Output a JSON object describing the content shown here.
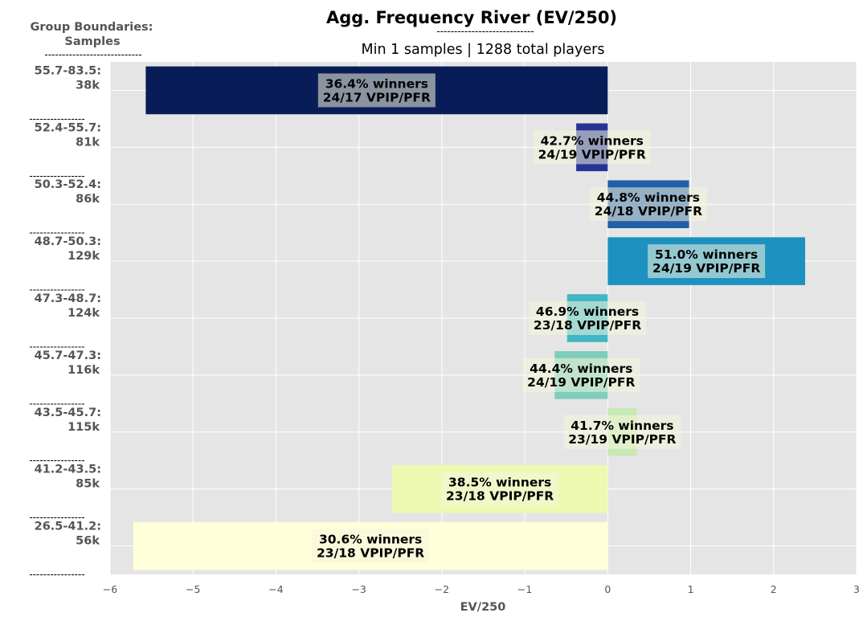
{
  "chart_data": {
    "type": "bar",
    "orientation": "horizontal",
    "title": "Agg. Frequency River (EV/250)",
    "title_underline": "----------------------------",
    "subtitle": "Min 1 samples | 1288 total players",
    "corner_label_line1": "Group Boundaries:",
    "corner_label_line2": "Samples",
    "corner_underline": "----------------------------",
    "row_separator": "----------------",
    "xlabel": "EV/250",
    "xlim": [
      -6,
      3
    ],
    "x_ticks": [
      {
        "value": -6,
        "label": "−6"
      },
      {
        "value": -5,
        "label": "−5"
      },
      {
        "value": -4,
        "label": "−4"
      },
      {
        "value": -3,
        "label": "−3"
      },
      {
        "value": -2,
        "label": "−2"
      },
      {
        "value": -1,
        "label": "−1"
      },
      {
        "value": 0,
        "label": "0"
      },
      {
        "value": 1,
        "label": "1"
      },
      {
        "value": 2,
        "label": "2"
      },
      {
        "value": 3,
        "label": "3"
      }
    ],
    "grid": true,
    "background": "#e5e5e5",
    "grid_color": "#ffffff",
    "categories": [
      {
        "range": "55.7-83.5:",
        "samples": "38k",
        "value": -5.57,
        "color": "#081d58",
        "winners": "36.4% winners",
        "vpip_pfr": "24/17 VPIP/PFR"
      },
      {
        "range": "52.4-55.7:",
        "samples": "81k",
        "value": -0.38,
        "color": "#253494",
        "winners": "42.7% winners",
        "vpip_pfr": "24/19 VPIP/PFR"
      },
      {
        "range": "50.3-52.4:",
        "samples": "86k",
        "value": 0.98,
        "color": "#225ea8",
        "winners": "44.8% winners",
        "vpip_pfr": "24/18 VPIP/PFR"
      },
      {
        "range": "48.7-50.3:",
        "samples": "129k",
        "value": 2.38,
        "color": "#1d91c0",
        "winners": "51.0% winners",
        "vpip_pfr": "24/19 VPIP/PFR"
      },
      {
        "range": "47.3-48.7:",
        "samples": "124k",
        "value": -0.49,
        "color": "#41b6c4",
        "winners": "46.9% winners",
        "vpip_pfr": "23/18 VPIP/PFR"
      },
      {
        "range": "45.7-47.3:",
        "samples": "116k",
        "value": -0.64,
        "color": "#7fcdbb",
        "winners": "44.4% winners",
        "vpip_pfr": "24/19 VPIP/PFR"
      },
      {
        "range": "43.5-45.7:",
        "samples": "115k",
        "value": 0.35,
        "color": "#c7e9b4",
        "winners": "41.7% winners",
        "vpip_pfr": "23/19 VPIP/PFR"
      },
      {
        "range": "41.2-43.5:",
        "samples": "85k",
        "value": -2.6,
        "color": "#edf8b1",
        "winners": "38.5% winners",
        "vpip_pfr": "23/18 VPIP/PFR"
      },
      {
        "range": "26.5-41.2:",
        "samples": "56k",
        "value": -5.72,
        "color": "#ffffd9",
        "winners": "30.6% winners",
        "vpip_pfr": "23/18 VPIP/PFR"
      }
    ]
  }
}
